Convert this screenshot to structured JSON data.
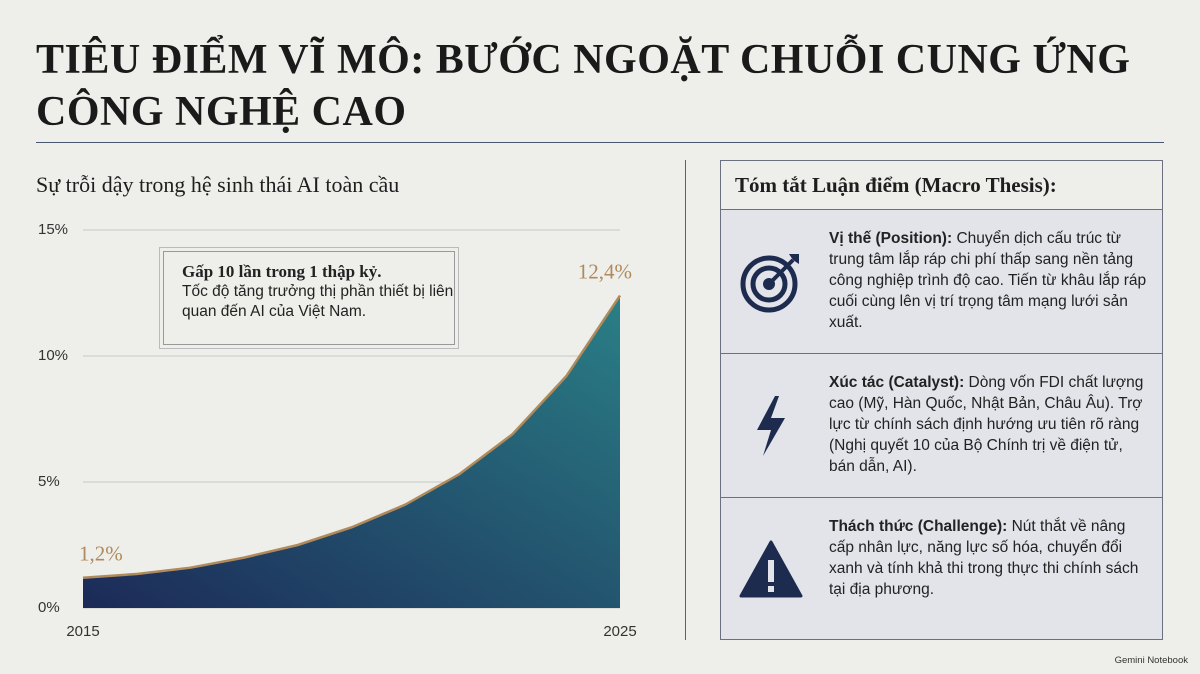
{
  "header": {
    "title_lines": [
      "TIÊU ĐIỂM VĨ MÔ: BƯỚC NGOẶT CHUỖI CUNG ỨNG",
      "CÔNG NGHỆ CAO"
    ]
  },
  "chart_data": {
    "type": "area",
    "subtitle": "Sự trỗi dậy trong hệ sinh thái AI toàn cầu",
    "x": [
      2015,
      2016,
      2017,
      2018,
      2019,
      2020,
      2021,
      2022,
      2023,
      2024,
      2025
    ],
    "values": [
      1.2,
      1.35,
      1.6,
      2.0,
      2.5,
      3.2,
      4.1,
      5.3,
      6.9,
      9.2,
      12.4
    ],
    "value_labels": [
      "1,2%",
      null,
      null,
      null,
      null,
      null,
      null,
      null,
      null,
      null,
      "12,4%"
    ],
    "xlim": [
      2015,
      2025
    ],
    "xticks": [
      2015,
      2025
    ],
    "ylim": [
      0,
      15
    ],
    "yticks": [
      {
        "value": 0,
        "label": "0%"
      },
      {
        "value": 5,
        "label": "5%"
      },
      {
        "value": 10,
        "label": "10%"
      },
      {
        "value": 15,
        "label": "15%"
      }
    ],
    "grid": true,
    "line_color": "#b08a5a",
    "fill_colors": [
      "#1c2a58",
      "#2a7f86"
    ],
    "annotation": {
      "title": "Gấp 10 lần trong 1 thập kỷ.",
      "text": "Tốc độ tăng trưởng thị phần thiết bị liên quan đến AI của Việt Nam."
    }
  },
  "thesis": {
    "title": "Tóm tắt Luận điểm (Macro Thesis):",
    "items": [
      {
        "label": "Vị thế (Position):",
        "text": "Chuyển dịch cấu trúc từ trung tâm lắp ráp chi phí thấp sang nền tảng công nghiệp trình độ cao. Tiến từ khâu lắp ráp cuối cùng lên vị trí trọng tâm mạng lưới sản xuất."
      },
      {
        "label": "Xúc tác (Catalyst):",
        "text": "Dòng vốn FDI chất lượng cao (Mỹ, Hàn Quốc, Nhật Bản, Châu Âu). Trợ lực từ chính sách định hướng ưu tiên rõ ràng (Nghị quyết 10 của Bộ Chính trị về điện tử, bán dẫn, AI)."
      },
      {
        "label": "Thách thức (Challenge):",
        "text": "Nút thắt về nâng cấp nhân lực, năng lực số hóa, chuyển đổi xanh và tính khả thi trong thực thi chính sách tại địa phương."
      }
    ]
  },
  "footer": {
    "brand": "Gemini Notebook"
  }
}
